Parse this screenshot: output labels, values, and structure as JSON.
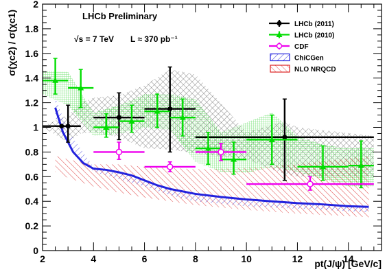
{
  "chart_data": {
    "type": "scatter",
    "title": "LHCb Preliminary",
    "subtitle_parts": {
      "sqrt_s": "√s = 7 TeV",
      "lumi": "L ≈ 370 pb⁻¹"
    },
    "xlabel": "pt(J/ψ) [GeV/c]",
    "ylabel": "σ(χc2) / σ(χc1)",
    "xlim": [
      2,
      15.3
    ],
    "ylim": [
      0,
      2
    ],
    "xticks": [
      2,
      4,
      6,
      8,
      10,
      12,
      14
    ],
    "xtick_labels": [
      "2",
      "4",
      "6",
      "8",
      "10",
      "12",
      "14"
    ],
    "yticks": [
      0,
      0.2,
      0.4,
      0.6,
      0.8,
      1,
      1.2,
      1.4,
      1.6,
      1.8,
      2
    ],
    "ytick_labels": [
      "0",
      "0.2",
      "0.4",
      "0.6",
      "0.8",
      "1",
      "1.2",
      "1.4",
      "1.6",
      "1.8",
      "2"
    ],
    "legend_position": "top-right",
    "series": [
      {
        "name": "LHCb (2011)",
        "color": "#000000",
        "marker": "filled-circle",
        "points": [
          {
            "x": 2.75,
            "y": 1.01,
            "xlo": 2.0,
            "xhi": 3.5,
            "ylo": 1.01,
            "yhi": 1.01
          },
          {
            "x": 3.0,
            "y": 1.01,
            "xlo": 2.5,
            "xhi": 3.5,
            "ylo": 0.88,
            "yhi": 1.18
          },
          {
            "x": 5.0,
            "y": 1.08,
            "xlo": 4.0,
            "xhi": 6.0,
            "ylo": 0.9,
            "yhi": 1.28
          },
          {
            "x": 7.0,
            "y": 1.15,
            "xlo": 6.0,
            "xhi": 8.0,
            "ylo": 0.8,
            "yhi": 1.49
          },
          {
            "x": 11.5,
            "y": 0.92,
            "xlo": 8.0,
            "xhi": 15.0,
            "ylo": 0.57,
            "yhi": 1.23
          }
        ]
      },
      {
        "name": "LHCb (2010)",
        "color": "#00dd00",
        "marker": "filled-triangle",
        "points": [
          {
            "x": 2.5,
            "y": 1.38,
            "xlo": 2.0,
            "xhi": 3.0,
            "ylo": 1.27,
            "yhi": 1.56
          },
          {
            "x": 3.5,
            "y": 1.32,
            "xlo": 3.0,
            "xhi": 4.0,
            "ylo": 1.16,
            "yhi": 1.47
          },
          {
            "x": 4.5,
            "y": 1.0,
            "xlo": 4.0,
            "xhi": 5.0,
            "ylo": 0.92,
            "yhi": 1.11
          },
          {
            "x": 5.5,
            "y": 1.05,
            "xlo": 5.0,
            "xhi": 6.0,
            "ylo": 0.96,
            "yhi": 1.18
          },
          {
            "x": 6.5,
            "y": 1.13,
            "xlo": 6.0,
            "xhi": 7.0,
            "ylo": 1.0,
            "yhi": 1.27
          },
          {
            "x": 7.5,
            "y": 1.08,
            "xlo": 7.0,
            "xhi": 8.0,
            "ylo": 0.93,
            "yhi": 1.23
          },
          {
            "x": 8.5,
            "y": 0.83,
            "xlo": 8.0,
            "xhi": 9.0,
            "ylo": 0.7,
            "yhi": 0.96
          },
          {
            "x": 9.5,
            "y": 0.74,
            "xlo": 9.0,
            "xhi": 10.0,
            "ylo": 0.62,
            "yhi": 0.88
          },
          {
            "x": 11.0,
            "y": 0.9,
            "xlo": 10.0,
            "xhi": 12.0,
            "ylo": 0.7,
            "yhi": 1.1
          },
          {
            "x": 13.0,
            "y": 0.68,
            "xlo": 12.0,
            "xhi": 14.0,
            "ylo": 0.57,
            "yhi": 0.85
          },
          {
            "x": 14.5,
            "y": 0.69,
            "xlo": 14.0,
            "xhi": 15.0,
            "ylo": 0.51,
            "yhi": 0.89
          }
        ]
      },
      {
        "name": "CDF",
        "color": "#ee00ee",
        "marker": "open-circle",
        "points": [
          {
            "x": 5.0,
            "y": 0.8,
            "xlo": 4.0,
            "xhi": 6.0,
            "ylo": 0.74,
            "yhi": 0.88
          },
          {
            "x": 7.0,
            "y": 0.68,
            "xlo": 6.0,
            "xhi": 8.0,
            "ylo": 0.64,
            "yhi": 0.72
          },
          {
            "x": 9.0,
            "y": 0.8,
            "xlo": 8.0,
            "xhi": 10.0,
            "ylo": 0.73,
            "yhi": 0.87
          },
          {
            "x": 12.5,
            "y": 0.54,
            "xlo": 10.0,
            "xhi": 15.0,
            "ylo": 0.49,
            "yhi": 0.6
          }
        ]
      }
    ],
    "bands": [
      {
        "name": "LHCb (2011) uncertainty band",
        "color": "#555555",
        "hatch": "cross",
        "x": [
          2.0,
          3.0,
          3.5,
          4.0,
          5.0,
          6.0,
          7.0,
          8.0,
          10.0,
          11.5,
          12.0,
          15.0
        ],
        "lower": [
          1.0,
          0.88,
          0.95,
          0.96,
          0.92,
          0.83,
          0.82,
          0.79,
          0.74,
          0.62,
          0.6,
          0.6
        ],
        "upper": [
          1.01,
          1.1,
          1.2,
          1.24,
          1.26,
          1.34,
          1.47,
          1.43,
          0.96,
          1.05,
          1.0,
          0.93
        ]
      },
      {
        "name": "LHCb (2010) uncertainty band",
        "color": "#55dd55",
        "hatch": "grid",
        "x": [
          2.0,
          3.0,
          4.0,
          5.0,
          6.0,
          7.0,
          8.0,
          9.0,
          10.0,
          11.0,
          12.0,
          13.0,
          14.0,
          15.0
        ],
        "lower": [
          1.27,
          1.18,
          0.93,
          0.95,
          1.0,
          0.98,
          0.72,
          0.64,
          0.63,
          0.68,
          0.64,
          0.58,
          0.52,
          0.52
        ],
        "upper": [
          1.46,
          1.45,
          1.12,
          1.18,
          1.27,
          1.27,
          1.23,
          0.96,
          1.04,
          1.12,
          0.93,
          0.86,
          0.83,
          0.83
        ]
      },
      {
        "name": "ChiCGen",
        "color": "#2222dd",
        "hatch": "diagonal",
        "x": [
          2.5,
          3.0,
          4.0,
          5.0,
          6.0,
          7.0,
          8.0,
          10.0,
          12.0,
          14.0,
          14.8
        ],
        "lower": [
          1.08,
          0.86,
          0.64,
          0.58,
          0.52,
          0.45,
          0.4,
          0.36,
          0.34,
          0.32,
          0.31
        ],
        "upper": [
          1.24,
          0.97,
          0.68,
          0.64,
          0.56,
          0.5,
          0.46,
          0.42,
          0.39,
          0.37,
          0.36
        ]
      },
      {
        "name": "NLO NRQCD",
        "color": "#dd2222",
        "hatch": "anti-diagonal",
        "x": [
          2.5,
          3.0,
          4.0,
          5.0,
          6.0,
          7.0,
          8.0,
          10.0,
          12.0,
          14.0,
          14.8
        ],
        "lower": [
          0.64,
          0.59,
          0.52,
          0.47,
          0.43,
          0.4,
          0.37,
          0.33,
          0.3,
          0.28,
          0.27
        ],
        "upper": [
          0.77,
          0.74,
          0.7,
          0.7,
          0.68,
          0.67,
          0.66,
          0.67,
          0.7,
          0.75,
          0.77
        ]
      }
    ],
    "chicgen_line": {
      "name": "ChiCGen",
      "color": "#2222dd",
      "x": [
        2.5,
        2.8,
        3.2,
        3.6,
        4.0,
        4.5,
        5.0,
        5.5,
        6.0,
        6.5,
        7.0,
        8.0,
        9.0,
        10.0,
        11.0,
        12.0,
        13.0,
        14.0,
        14.8
      ],
      "y": [
        1.16,
        0.96,
        0.8,
        0.71,
        0.665,
        0.655,
        0.635,
        0.61,
        0.57,
        0.53,
        0.5,
        0.46,
        0.435,
        0.415,
        0.4,
        0.385,
        0.375,
        0.36,
        0.355
      ]
    }
  },
  "legend": [
    {
      "label": "LHCb (2011)",
      "kind": "marker-circle",
      "color": "#000000"
    },
    {
      "label": "LHCb (2010)",
      "kind": "marker-triangle",
      "color": "#00dd00"
    },
    {
      "label": "CDF",
      "kind": "marker-open-circle",
      "color": "#ee00ee"
    },
    {
      "label": "ChiCGen",
      "kind": "band-diagonal",
      "color": "#2222dd"
    },
    {
      "label": "NLO NRQCD",
      "kind": "band-anti-diagonal",
      "color": "#dd2222"
    }
  ]
}
